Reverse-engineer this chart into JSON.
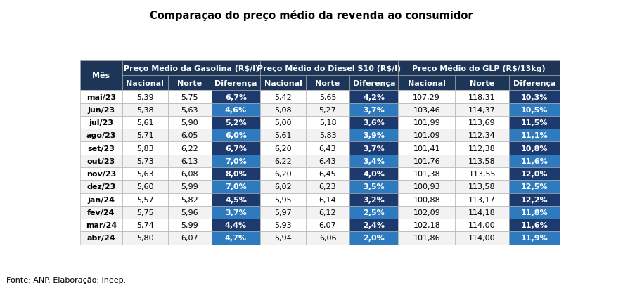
{
  "title": "Comparação do preço médio da revenda ao consumidor",
  "footnote": "Fonte: ANP. Elaboração: Ineep.",
  "col_groups": [
    {
      "label": "Preço Médio da Gasolina (R$/l)"
    },
    {
      "label": "Preço Médio do Diesel S10 (R$/l)"
    },
    {
      "label": "Preço Médio do GLP (R$/13kg)"
    }
  ],
  "months": [
    "mai/23",
    "jun/23",
    "jul/23",
    "ago/23",
    "set/23",
    "out/23",
    "nov/23",
    "dez/23",
    "jan/24",
    "fev/24",
    "mar/24",
    "abr/24"
  ],
  "gasolina_nacional": [
    "5,39",
    "5,38",
    "5,61",
    "5,71",
    "5,83",
    "5,73",
    "5,63",
    "5,60",
    "5,57",
    "5,75",
    "5,74",
    "5,80"
  ],
  "gasolina_norte": [
    "5,75",
    "5,63",
    "5,90",
    "6,05",
    "6,22",
    "6,13",
    "6,08",
    "5,99",
    "5,82",
    "5,96",
    "5,99",
    "6,07"
  ],
  "gasolina_diff": [
    "6,7%",
    "4,6%",
    "5,2%",
    "6,0%",
    "6,7%",
    "7,0%",
    "8,0%",
    "7,0%",
    "4,5%",
    "3,7%",
    "4,4%",
    "4,7%"
  ],
  "diesel_nacional": [
    "5,42",
    "5,08",
    "5,00",
    "5,61",
    "6,20",
    "6,22",
    "6,20",
    "6,02",
    "5,95",
    "5,97",
    "5,93",
    "5,94"
  ],
  "diesel_norte": [
    "5,65",
    "5,27",
    "5,18",
    "5,83",
    "6,43",
    "6,43",
    "6,45",
    "6,23",
    "6,14",
    "6,12",
    "6,07",
    "6,06"
  ],
  "diesel_diff": [
    "4,2%",
    "3,7%",
    "3,6%",
    "3,9%",
    "3,7%",
    "3,4%",
    "4,0%",
    "3,5%",
    "3,2%",
    "2,5%",
    "2,4%",
    "2,0%"
  ],
  "glp_nacional": [
    "107,29",
    "103,46",
    "101,99",
    "101,09",
    "101,41",
    "101,76",
    "101,38",
    "100,93",
    "100,88",
    "102,09",
    "102,18",
    "101,86"
  ],
  "glp_norte": [
    "118,31",
    "114,37",
    "113,69",
    "112,34",
    "112,38",
    "113,58",
    "113,55",
    "113,58",
    "113,17",
    "114,18",
    "114,00",
    "114,00"
  ],
  "glp_diff": [
    "10,3%",
    "10,5%",
    "11,5%",
    "11,1%",
    "10,8%",
    "11,6%",
    "12,0%",
    "12,5%",
    "12,2%",
    "11,8%",
    "11,6%",
    "11,9%"
  ],
  "dark_header_bg": "#1d3557",
  "header_text": "#ffffff",
  "diff_dark": "#1d3a6e",
  "diff_light": "#2e7abf",
  "diff_text": "#ffffff",
  "row_bg_even": "#ffffff",
  "row_bg_odd": "#f2f2f2",
  "cell_text": "#000000",
  "title_fontsize": 10.5,
  "header_fontsize": 8.0,
  "cell_fontsize": 8.0,
  "footnote_fontsize": 8.0
}
